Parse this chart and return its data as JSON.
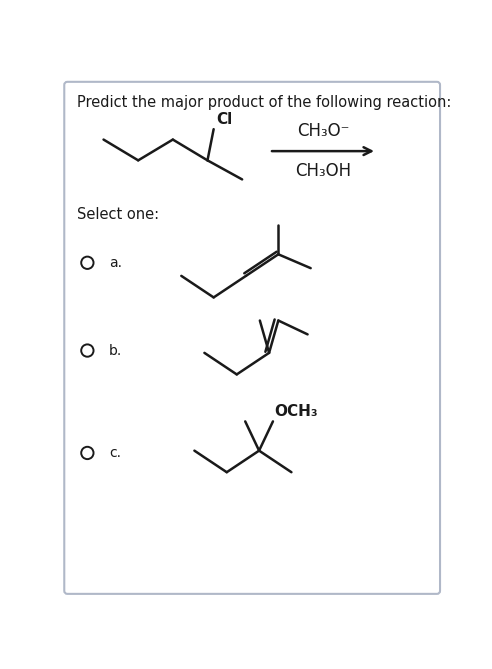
{
  "title": "Predict the major product of the following reaction:",
  "reagent_line1": "CH₃O⁻",
  "reagent_line2": "CH₃OH",
  "select_text": "Select one:",
  "option_a": "a.",
  "option_b": "b.",
  "option_c": "c.",
  "cl_label": "Cl",
  "och3_label": "OCH₃",
  "bg_color": "#ffffff",
  "line_color": "#1a1a1a",
  "text_color": "#1a1a1a",
  "border_color": "#b0b8c8",
  "font_size_title": 10.5,
  "font_size_reagent": 12,
  "font_size_option": 10,
  "font_size_cl": 11,
  "font_size_och3": 11
}
